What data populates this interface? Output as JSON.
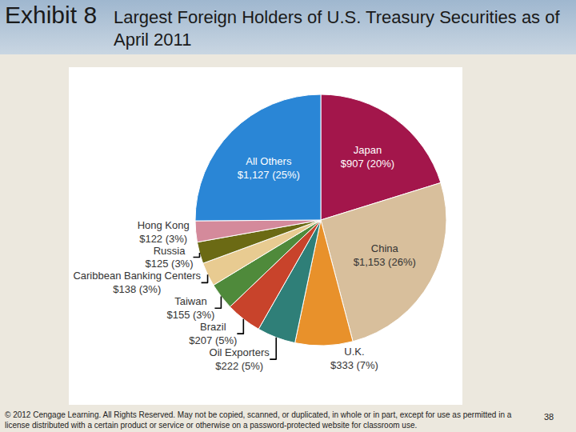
{
  "slide": {
    "exhibit": "Exhibit 8",
    "title": "Largest Foreign Holders of U.S. Treasury Securities as of April 2011",
    "footer": "© 2012 Cengage Learning. All Rights Reserved. May not be copied, scanned, or duplicated, in whole or in part, except for use as permitted in a license distributed with a certain product or service or otherwise on a password-protected website for classroom use.",
    "page": 38
  },
  "chart_data": {
    "type": "pie",
    "categories": [
      "Japan",
      "China",
      "U.K.",
      "Oil Exporters",
      "Brazil",
      "Taiwan",
      "Caribbean Banking Centers",
      "Russia",
      "Hong Kong",
      "All Others"
    ],
    "values": [
      907,
      1153,
      333,
      222,
      207,
      155,
      138,
      125,
      122,
      1127
    ],
    "value_labels": [
      "$907 (20%)",
      "$1,153 (26%)",
      "$333 (7%)",
      "$222 (5%)",
      "$207 (5%)",
      "$155 (3%)",
      "$138 (3%)",
      "$125 (3%)",
      "$122 (3%)",
      "$1,127 (25%)"
    ],
    "colors": [
      "#a3164b",
      "#d8bf9c",
      "#e8912b",
      "#2f7f78",
      "#c8432b",
      "#4f8a3b",
      "#e8cb91",
      "#6b6a14",
      "#d48a9b",
      "#2a86d6"
    ],
    "data_labels": true
  }
}
